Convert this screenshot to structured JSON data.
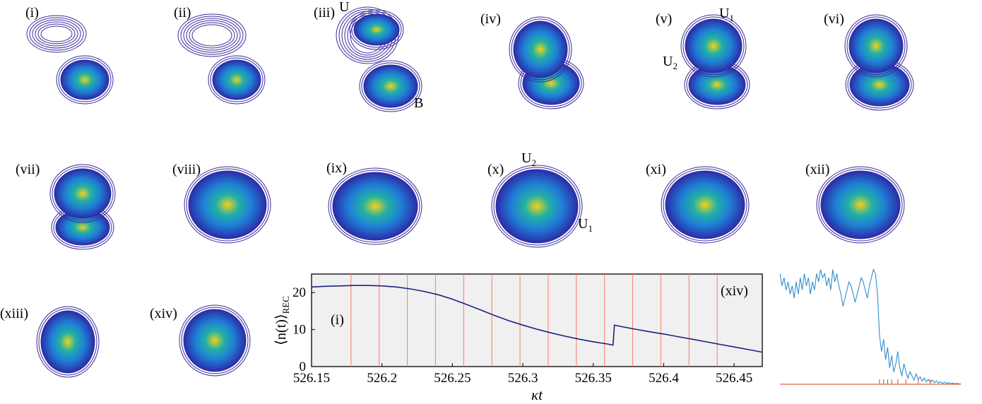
{
  "panels": [
    {
      "label": "(i)",
      "annotations": []
    },
    {
      "label": "(ii)",
      "annotations": []
    },
    {
      "label": "(iii)",
      "annotations": [
        {
          "text": "U",
          "sub": ""
        },
        {
          "text": "B",
          "sub": ""
        }
      ]
    },
    {
      "label": "(iv)",
      "annotations": []
    },
    {
      "label": "(v)",
      "annotations": [
        {
          "text": "U",
          "sub": "1"
        },
        {
          "text": "U",
          "sub": "2"
        }
      ]
    },
    {
      "label": "(vi)",
      "annotations": []
    },
    {
      "label": "(vii)",
      "annotations": []
    },
    {
      "label": "(viii)",
      "annotations": []
    },
    {
      "label": "(ix)",
      "annotations": []
    },
    {
      "label": "(x)",
      "annotations": [
        {
          "text": "U",
          "sub": "2"
        },
        {
          "text": "U",
          "sub": "1"
        }
      ]
    },
    {
      "label": "(xi)",
      "annotations": []
    },
    {
      "label": "(xii)",
      "annotations": []
    },
    {
      "label": "(xiii)",
      "annotations": []
    },
    {
      "label": "(xiv)",
      "annotations": []
    }
  ],
  "colors": {
    "contour_outline": "#3c2d9e",
    "density_low": "#2b2ca8",
    "density_mid": "#1f7fd6",
    "density_high": "#22b1a4",
    "density_peak": "#f2d21b",
    "main_line": "#1a237e",
    "marker_line": "#ff7a6b",
    "plot_bg": "#f0f0f0",
    "trace_line": "#2f8fcf",
    "baseline": "#e8623c"
  },
  "chart_data": [
    {
      "type": "line",
      "xlabel": "κt",
      "ylabel": "⟨n(t)⟩",
      "ylabel_sub": "REC",
      "xlim": [
        526.15,
        526.47
      ],
      "ylim": [
        0,
        25
      ],
      "xticks": [
        "526.15",
        "526.2",
        "526.25",
        "526.3",
        "526.35",
        "526.4",
        "526.45"
      ],
      "xtick_values": [
        526.15,
        526.2,
        526.25,
        526.3,
        526.35,
        526.4,
        526.45
      ],
      "yticks": [
        "0",
        "10",
        "20"
      ],
      "ytick_values": [
        0,
        10,
        20
      ],
      "grid": false,
      "inner_labels": {
        "start": "(i)",
        "end": "(xiv)"
      },
      "markers_x": [
        526.178,
        526.198,
        526.218,
        526.238,
        526.258,
        526.278,
        526.298,
        526.318,
        526.338,
        526.358,
        526.378,
        526.398,
        526.418,
        526.438
      ],
      "series": [
        {
          "x": [
            526.15,
            526.16,
            526.17,
            526.18,
            526.19,
            526.2,
            526.21,
            526.22,
            526.23,
            526.24,
            526.25,
            526.26,
            526.27,
            526.28,
            526.29,
            526.3,
            526.31,
            526.32,
            526.33,
            526.34,
            526.35,
            526.36,
            526.364,
            526.365,
            526.37,
            526.38,
            526.39,
            526.4,
            526.41,
            526.42,
            526.43,
            526.44,
            526.45,
            526.46,
            526.47
          ],
          "y": [
            21.5,
            21.7,
            21.8,
            21.9,
            21.9,
            21.8,
            21.5,
            21.0,
            20.3,
            19.4,
            18.2,
            16.8,
            15.3,
            13.8,
            12.4,
            11.2,
            10.1,
            9.1,
            8.2,
            7.4,
            6.7,
            6.1,
            5.8,
            11.2,
            10.8,
            10.1,
            9.4,
            8.8,
            8.1,
            7.4,
            6.7,
            6.0,
            5.3,
            4.6,
            3.9
          ]
        }
      ]
    },
    {
      "type": "line",
      "series": [
        {
          "y": [
            27,
            24,
            26,
            23,
            25,
            22,
            24,
            21,
            25,
            22,
            26,
            23,
            27,
            24,
            26,
            22,
            25,
            23,
            27,
            25,
            28,
            26,
            27,
            24,
            26,
            23,
            28,
            25,
            27,
            24,
            22,
            19,
            21,
            23,
            25,
            24,
            22,
            20,
            22,
            24,
            26,
            25,
            23,
            21,
            24,
            26,
            28,
            27,
            22,
            12,
            8,
            11,
            6,
            9,
            4,
            7,
            3,
            5,
            8,
            4,
            2,
            5,
            3,
            1.5,
            3,
            2,
            1,
            2.5,
            1.2,
            1.8,
            0.8,
            1.5,
            0.6,
            1.2,
            0.5,
            1,
            0.4,
            0.8,
            0.3,
            0.6,
            0.2,
            0.5,
            0.2,
            0.4,
            0.1,
            0.3,
            0.1,
            0.2,
            0.1,
            0.1
          ]
        }
      ],
      "ylim": [
        0,
        30
      ],
      "marker_index": [
        49,
        51,
        53,
        55,
        58,
        62,
        68,
        74
      ]
    }
  ]
}
